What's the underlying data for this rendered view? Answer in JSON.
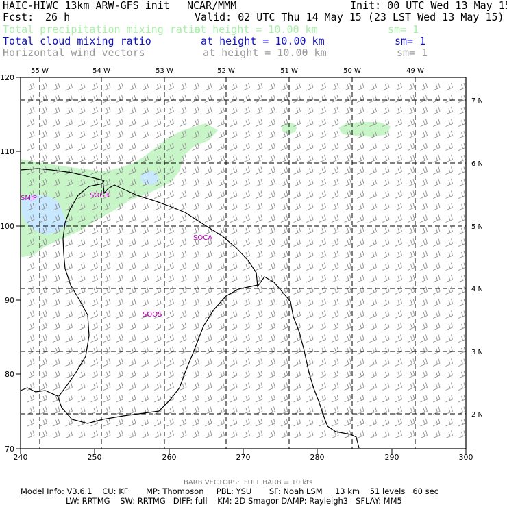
{
  "header": {
    "title_left": "HAIC-HIWC 13km ARW-GFS init",
    "title_mid": "NCAR/MMM",
    "init": "Init: 00 UTC Wed 13 May 15",
    "fcst_label": "Fcst:",
    "fcst_value": "26 h",
    "valid": "Valid: 02 UTC Thu 14 May 15 (23 LST Wed 13 May 15)",
    "fields": [
      {
        "name": "Total precipitation mixing ratio",
        "height": "at height = 10.00 km",
        "sm": "sm= 1",
        "color": "#a8f0a8"
      },
      {
        "name": "Total cloud mixing ratio",
        "height": "at height = 10.00 km",
        "sm": "sm= 1",
        "color": "#1010c8"
      },
      {
        "name": "Horizontal wind vectors",
        "height": "at height = 10.00 km",
        "sm": "sm= 1",
        "color": "#9a9a9a"
      }
    ]
  },
  "map": {
    "x_ticks": [
      "240",
      "250",
      "260",
      "270",
      "280",
      "290",
      "300"
    ],
    "y_ticks": [
      "70",
      "80",
      "90",
      "100",
      "110",
      "120"
    ],
    "lon_labels": [
      "55 W",
      "54 W",
      "53 W",
      "52 W",
      "51 W",
      "50 W",
      "49 W"
    ],
    "lat_labels": [
      "7 N",
      "6 N",
      "5 N",
      "4 N",
      "3 N",
      "2 N"
    ],
    "stations": [
      "SMJP",
      "SOGR",
      "SOCA",
      "SOOS"
    ],
    "station_color": "#c000c0",
    "precip_color": "#c8f5c8",
    "cloud_color": "#c8e8ff"
  },
  "footer": {
    "barb_legend": "BARB VECTORS:  FULL BARB = 10 kts",
    "line1": "Model Info: V3.6.1    CU: KF       MP: Thompson     PBL: YSU       SF: Noah LSM     13 km    51 levels   60 sec",
    "line2": "LW: RRTMG    SW: RRTMG   DIFF: full    KM: 2D Smagor DAMP: Rayleigh3   SFLAY: MM5"
  }
}
